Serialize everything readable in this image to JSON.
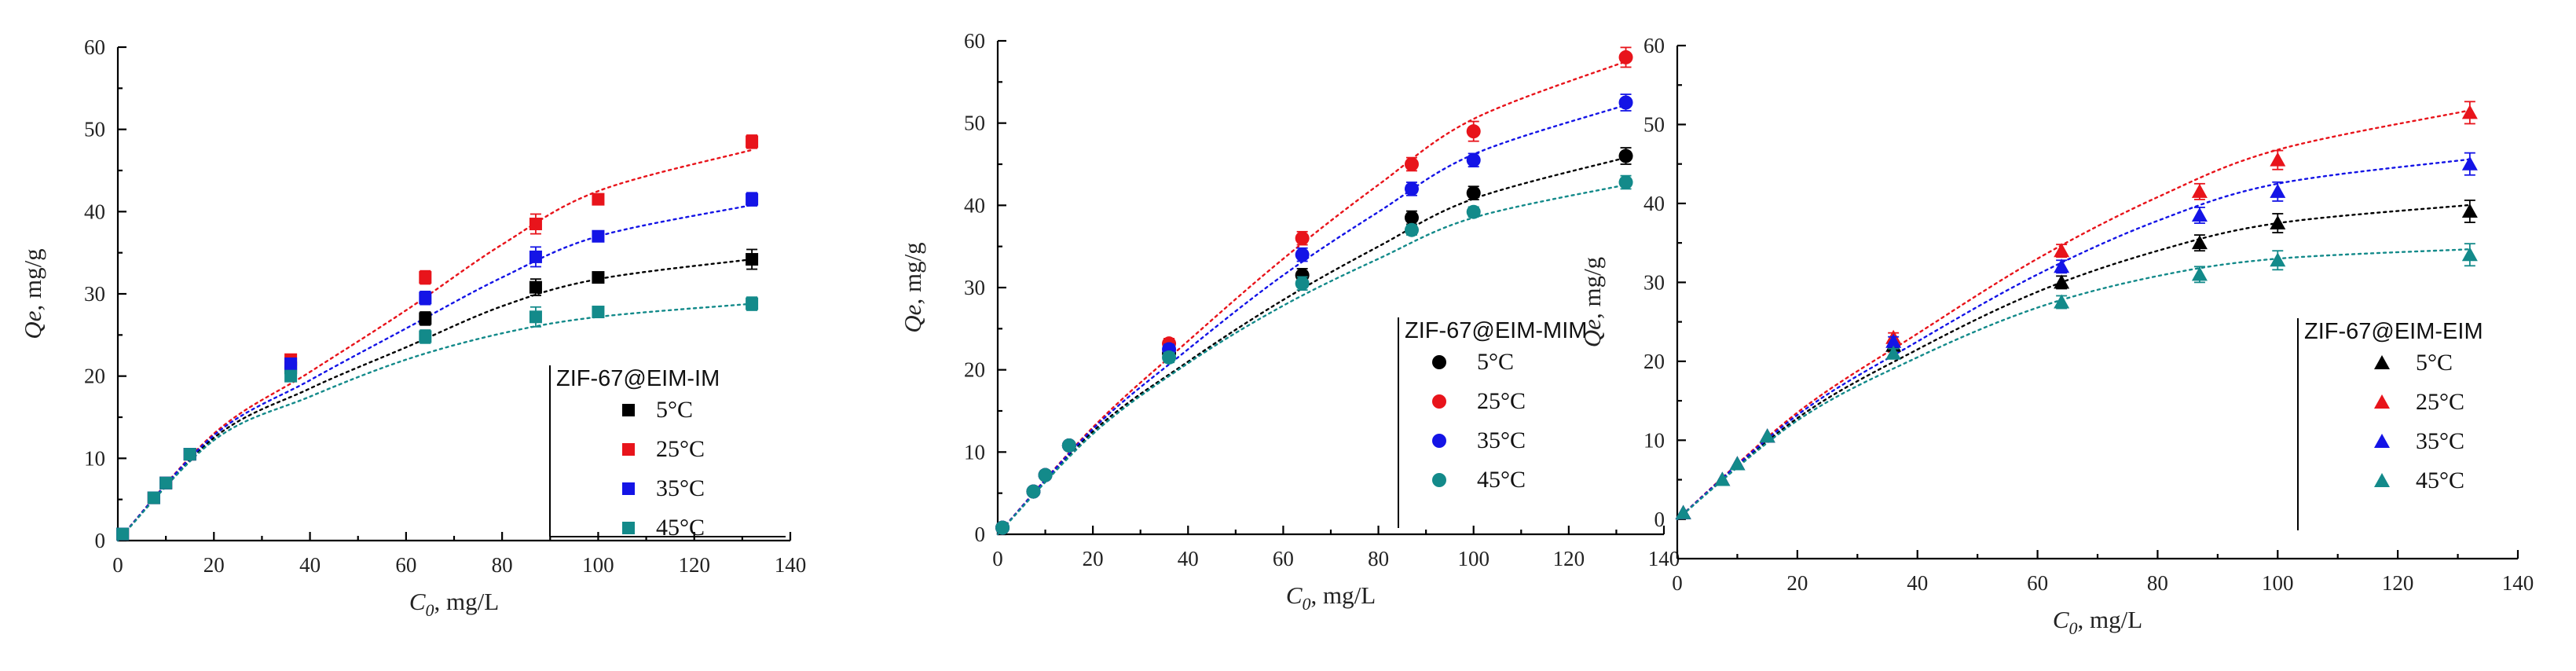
{
  "chart_data": [
    {
      "type": "scatter",
      "marker": "square",
      "legend_title": "ZIF-67@EIM-IM",
      "legend_position": "lower-right",
      "xlabel": "C0, mg/L",
      "ylabel": "Qe, mg/g",
      "xlim": [
        0,
        140
      ],
      "ylim": [
        0,
        60
      ],
      "xticks": [
        0,
        20,
        40,
        60,
        80,
        100,
        120,
        140
      ],
      "yticks": [
        0,
        10,
        20,
        30,
        40,
        50,
        60
      ],
      "x": [
        1,
        7.5,
        10,
        15,
        36,
        64,
        87,
        100,
        132
      ],
      "series": [
        {
          "name": "5°C",
          "color": "#000000",
          "values": [
            0.8,
            5.2,
            7.0,
            10.5,
            21.0,
            27.0,
            30.8,
            32.0,
            34.2
          ],
          "errors": [
            0,
            0,
            0,
            0,
            0.6,
            0.8,
            1.0,
            0.6,
            1.2
          ],
          "fit": [
            0,
            12.5,
            18.5,
            23.5,
            28.5,
            31.8,
            34.2
          ]
        },
        {
          "name": "25°C",
          "color": "#e8141b",
          "values": [
            0.8,
            5.2,
            7.0,
            10.5,
            22.0,
            32.0,
            38.5,
            41.5,
            48.5
          ],
          "errors": [
            0,
            0,
            0,
            0,
            0.6,
            0.8,
            1.2,
            0.6,
            0.8
          ],
          "fit": [
            0,
            13.0,
            20.5,
            28.0,
            36.0,
            42.5,
            47.5
          ]
        },
        {
          "name": "35°C",
          "color": "#1414e6",
          "values": [
            0.8,
            5.2,
            7.0,
            10.5,
            21.5,
            29.5,
            34.5,
            37.0,
            41.5
          ],
          "errors": [
            0,
            0,
            0,
            0,
            0.6,
            0.8,
            1.2,
            0.6,
            0.8
          ],
          "fit": [
            0,
            12.8,
            19.5,
            25.8,
            32.0,
            37.0,
            40.8
          ]
        },
        {
          "name": "45°C",
          "color": "#138a8a",
          "values": [
            0.8,
            5.2,
            7.0,
            10.5,
            20.0,
            24.8,
            27.2,
            27.8,
            28.8
          ],
          "errors": [
            0,
            0,
            0,
            0,
            0.6,
            0.8,
            1.2,
            0.6,
            0.8
          ],
          "fit": [
            0,
            12.2,
            17.5,
            22.0,
            25.2,
            27.2,
            28.8
          ]
        }
      ]
    },
    {
      "type": "scatter",
      "marker": "circle",
      "legend_title": "ZIF-67@EIM-MIM",
      "legend_position": "lower-right",
      "xlabel": "C0, mg/L",
      "ylabel": "Qe, mg/g",
      "xlim": [
        0,
        140
      ],
      "ylim": [
        0,
        60
      ],
      "xticks": [
        0,
        20,
        40,
        60,
        80,
        100,
        120,
        140
      ],
      "yticks": [
        0,
        10,
        20,
        30,
        40,
        50,
        60
      ],
      "x": [
        1,
        7.5,
        10,
        15,
        36,
        64,
        87,
        100,
        132
      ],
      "series": [
        {
          "name": "5°C",
          "color": "#000000",
          "values": [
            0.8,
            5.2,
            7.2,
            10.8,
            22.0,
            31.5,
            38.5,
            41.5,
            46.0
          ],
          "errors": [
            0,
            0,
            0,
            0,
            0.6,
            0.8,
            0.8,
            0.8,
            1.0
          ],
          "fit": [
            0,
            12.5,
            21.0,
            28.5,
            35.0,
            40.8,
            45.8
          ]
        },
        {
          "name": "25°C",
          "color": "#e8141b",
          "values": [
            0.8,
            5.2,
            7.2,
            10.8,
            23.2,
            36.0,
            45.0,
            49.0,
            58.0
          ],
          "errors": [
            0,
            0,
            0,
            0,
            0.6,
            0.8,
            0.8,
            1.2,
            1.2
          ],
          "fit": [
            0,
            13.0,
            23.5,
            33.5,
            42.5,
            50.5,
            57.5
          ]
        },
        {
          "name": "35°C",
          "color": "#1414e6",
          "values": [
            0.8,
            5.2,
            7.2,
            10.8,
            22.5,
            34.0,
            42.0,
            45.5,
            52.5
          ],
          "errors": [
            0,
            0,
            0,
            0,
            0.6,
            0.8,
            0.8,
            0.8,
            1.0
          ],
          "fit": [
            0,
            12.8,
            22.5,
            31.5,
            39.2,
            46.2,
            52.2
          ]
        },
        {
          "name": "45°C",
          "color": "#138a8a",
          "values": [
            0.8,
            5.2,
            7.2,
            10.8,
            21.5,
            30.5,
            37.0,
            39.2,
            42.8
          ],
          "errors": [
            0,
            0,
            0,
            0,
            0.6,
            0.8,
            0.6,
            0.6,
            0.8
          ],
          "fit": [
            0,
            12.2,
            20.8,
            27.8,
            33.5,
            38.5,
            42.5
          ]
        }
      ]
    },
    {
      "type": "scatter",
      "marker": "triangle",
      "legend_title": "ZIF-67@EIM-EIM",
      "legend_position": "lower-right",
      "xlabel": "C0, mg/L",
      "ylabel": "Qe, mg/g",
      "xlim": [
        0,
        140
      ],
      "ylim": [
        -5,
        60
      ],
      "xticks": [
        0,
        20,
        40,
        60,
        80,
        100,
        120,
        140
      ],
      "yticks": [
        0,
        10,
        20,
        30,
        40,
        50,
        60
      ],
      "x": [
        1,
        7.5,
        10,
        15,
        36,
        64,
        87,
        100,
        132
      ],
      "series": [
        {
          "name": "5°C",
          "color": "#000000",
          "values": [
            0.8,
            5.0,
            7.0,
            10.5,
            22.0,
            30.0,
            35.0,
            37.5,
            39.0
          ],
          "errors": [
            0,
            0,
            0,
            0,
            0.6,
            0.8,
            1.0,
            1.2,
            1.4
          ],
          "fit": [
            0,
            12.8,
            21.5,
            28.8,
            34.0,
            37.5,
            39.8
          ]
        },
        {
          "name": "25°C",
          "color": "#e8141b",
          "values": [
            0.8,
            5.0,
            7.0,
            10.5,
            23.0,
            34.0,
            41.5,
            45.5,
            51.5
          ],
          "errors": [
            0,
            0,
            0,
            0,
            0.6,
            0.8,
            1.0,
            1.2,
            1.4
          ],
          "fit": [
            0,
            13.5,
            23.5,
            33.0,
            40.8,
            46.8,
            51.8
          ]
        },
        {
          "name": "35°C",
          "color": "#1414e6",
          "values": [
            0.8,
            5.0,
            7.0,
            10.5,
            22.5,
            32.0,
            38.5,
            41.5,
            45.0
          ],
          "errors": [
            0,
            0,
            0,
            0,
            0.6,
            0.8,
            1.0,
            1.2,
            1.4
          ],
          "fit": [
            0,
            13.2,
            22.5,
            31.0,
            37.8,
            42.5,
            45.6
          ]
        },
        {
          "name": "45°C",
          "color": "#138a8a",
          "values": [
            0.8,
            5.0,
            7.0,
            10.5,
            21.0,
            27.5,
            31.0,
            32.8,
            33.5
          ],
          "errors": [
            0,
            0,
            0,
            0,
            0.6,
            0.8,
            1.0,
            1.2,
            1.4
          ],
          "fit": [
            0,
            12.5,
            20.5,
            26.8,
            30.8,
            33.0,
            34.2
          ]
        }
      ]
    }
  ]
}
